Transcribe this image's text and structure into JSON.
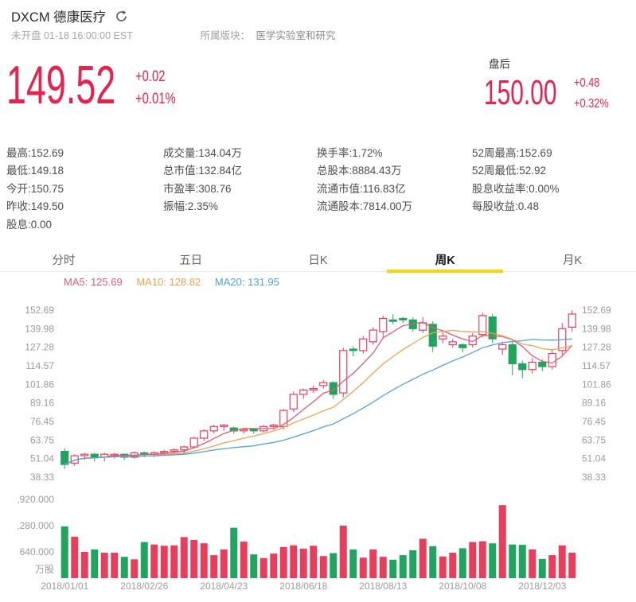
{
  "header": {
    "title": "DXCM 德康医疗",
    "status": "未开盘 01-18 16:00:00 EST",
    "sector_label": "所属版块：",
    "sector_value": "医学实验室和研究"
  },
  "quote": {
    "price": "149.52",
    "change": "+0.02",
    "change_pct": "+0.01%",
    "after_label": "盘后",
    "after_price": "150.00",
    "after_change": "+0.48",
    "after_change_pct": "+0.32%"
  },
  "stats": {
    "c1": [
      {
        "l": "最高:",
        "v": "152.69"
      },
      {
        "l": "最低:",
        "v": "149.18"
      },
      {
        "l": "今开:",
        "v": "150.75"
      },
      {
        "l": "昨收:",
        "v": "149.50"
      },
      {
        "l": "股息:",
        "v": "0.00"
      }
    ],
    "c2": [
      {
        "l": "成交量:",
        "v": "134.04万"
      },
      {
        "l": "总市值:",
        "v": "132.84亿"
      },
      {
        "l": "市盈率:",
        "v": "308.76"
      },
      {
        "l": "振幅:",
        "v": "2.35%"
      }
    ],
    "c3": [
      {
        "l": "换手率:",
        "v": "1.72%"
      },
      {
        "l": "总股本:",
        "v": "8884.43万"
      },
      {
        "l": "流通市值:",
        "v": "116.83亿"
      },
      {
        "l": "流通股本:",
        "v": "7814.00万"
      }
    ],
    "c4": [
      {
        "l": "52周最高:",
        "v": "152.69"
      },
      {
        "l": "52周最低:",
        "v": "52.92"
      },
      {
        "l": "股息收益率:",
        "v": "0.00%"
      },
      {
        "l": "每股收益:",
        "v": "0.48"
      }
    ]
  },
  "tabs": [
    {
      "label": "分时"
    },
    {
      "label": "五日"
    },
    {
      "label": "日K"
    },
    {
      "label": "周K"
    },
    {
      "label": "月K"
    }
  ],
  "active_tab": "周K",
  "colors": {
    "price_red": "#e6234c",
    "up": "#e83e5c",
    "down": "#1fa55e",
    "tab_underline": "#fbd30b",
    "axis_gray": "#9b9b9b"
  },
  "chart_data": {
    "type": "candlestick",
    "period": "weekly",
    "symbol": "DXCM",
    "ma_series": [
      {
        "name": "MA5",
        "period": 5,
        "value": "125.69",
        "color": "#e25a73"
      },
      {
        "name": "MA10",
        "period": 10,
        "value": "128.82",
        "color": "#eca254"
      },
      {
        "name": "MA20",
        "period": 20,
        "value": "131.95",
        "color": "#57a0d8"
      }
    ],
    "price_axis": [
      152.69,
      139.98,
      127.28,
      114.57,
      101.86,
      89.16,
      76.45,
      63.75,
      51.04,
      38.33
    ],
    "volume_axis": {
      "labels": [
        ",920.000",
        ",280.000",
        "640.000"
      ],
      "values": [
        1920,
        1280,
        640
      ],
      "unit": "万股"
    },
    "date_ticks": [
      {
        "label": "2018/01/01",
        "week": 0
      },
      {
        "label": "2018/02/26",
        "week": 8
      },
      {
        "label": "2018/04/23",
        "week": 16
      },
      {
        "label": "2018/06/18",
        "week": 24
      },
      {
        "label": "2018/08/13",
        "week": 32
      },
      {
        "label": "2018/10/08",
        "week": 40
      },
      {
        "label": "2018/12/03",
        "week": 48
      }
    ],
    "up_color": "#e83e5c",
    "down_color": "#1fa55e",
    "candles": [
      [
        56,
        47,
        44,
        58
      ],
      [
        48,
        53,
        46,
        54
      ],
      [
        53,
        54,
        50,
        55
      ],
      [
        54,
        52,
        49,
        55
      ],
      [
        52,
        54,
        49,
        55
      ],
      [
        53,
        54,
        51,
        55
      ],
      [
        54,
        52,
        50,
        54
      ],
      [
        52,
        55,
        51,
        56
      ],
      [
        55,
        54,
        52,
        56
      ],
      [
        54,
        55,
        52,
        56
      ],
      [
        55,
        56,
        53,
        57
      ],
      [
        56,
        57,
        54,
        58
      ],
      [
        57,
        59,
        54,
        60
      ],
      [
        59,
        65,
        58,
        66
      ],
      [
        65,
        70,
        63,
        71
      ],
      [
        70,
        73,
        68,
        74
      ],
      [
        73,
        74,
        70,
        75
      ],
      [
        72,
        70,
        68,
        73
      ],
      [
        70,
        71,
        68,
        72
      ],
      [
        71,
        70,
        68,
        72
      ],
      [
        70,
        73,
        69,
        74
      ],
      [
        73,
        74,
        71,
        75
      ],
      [
        73,
        84,
        71,
        85
      ],
      [
        85,
        95,
        83,
        97
      ],
      [
        95,
        98,
        92,
        99
      ],
      [
        98,
        99,
        96,
        101
      ],
      [
        101,
        103,
        99,
        105
      ],
      [
        103,
        95,
        92,
        104
      ],
      [
        96,
        125,
        93,
        127
      ],
      [
        126,
        125,
        121,
        128
      ],
      [
        125,
        133,
        123,
        135
      ],
      [
        131,
        139,
        129,
        141
      ],
      [
        138,
        147,
        134,
        149
      ],
      [
        146,
        145,
        143,
        150
      ],
      [
        147,
        146,
        144,
        148
      ],
      [
        146,
        140,
        138,
        148
      ],
      [
        139,
        144,
        137,
        148
      ],
      [
        143,
        128,
        124,
        145
      ],
      [
        133,
        135,
        130,
        138
      ],
      [
        129,
        131,
        127,
        133
      ],
      [
        129,
        127,
        124,
        130
      ],
      [
        129,
        135,
        127,
        137
      ],
      [
        136,
        149,
        134,
        151
      ],
      [
        148,
        133,
        130,
        150
      ],
      [
        126,
        129,
        122,
        131
      ],
      [
        129,
        116,
        108,
        131
      ],
      [
        116,
        112,
        106,
        118
      ],
      [
        112,
        117,
        109,
        120
      ],
      [
        117,
        114,
        111,
        119
      ],
      [
        114,
        123,
        112,
        126
      ],
      [
        125,
        140,
        122,
        144
      ],
      [
        141,
        150,
        138,
        152.5
      ]
    ],
    "volumes": [
      1260,
      1010,
      640,
      700,
      620,
      620,
      520,
      460,
      880,
      820,
      790,
      800,
      1000,
      930,
      850,
      560,
      700,
      1230,
      890,
      580,
      490,
      600,
      760,
      800,
      720,
      790,
      540,
      610,
      1280,
      700,
      500,
      700,
      520,
      450,
      560,
      680,
      960,
      780,
      530,
      620,
      730,
      880,
      900,
      850,
      1780,
      820,
      810,
      700,
      470,
      560,
      800,
      620
    ]
  }
}
